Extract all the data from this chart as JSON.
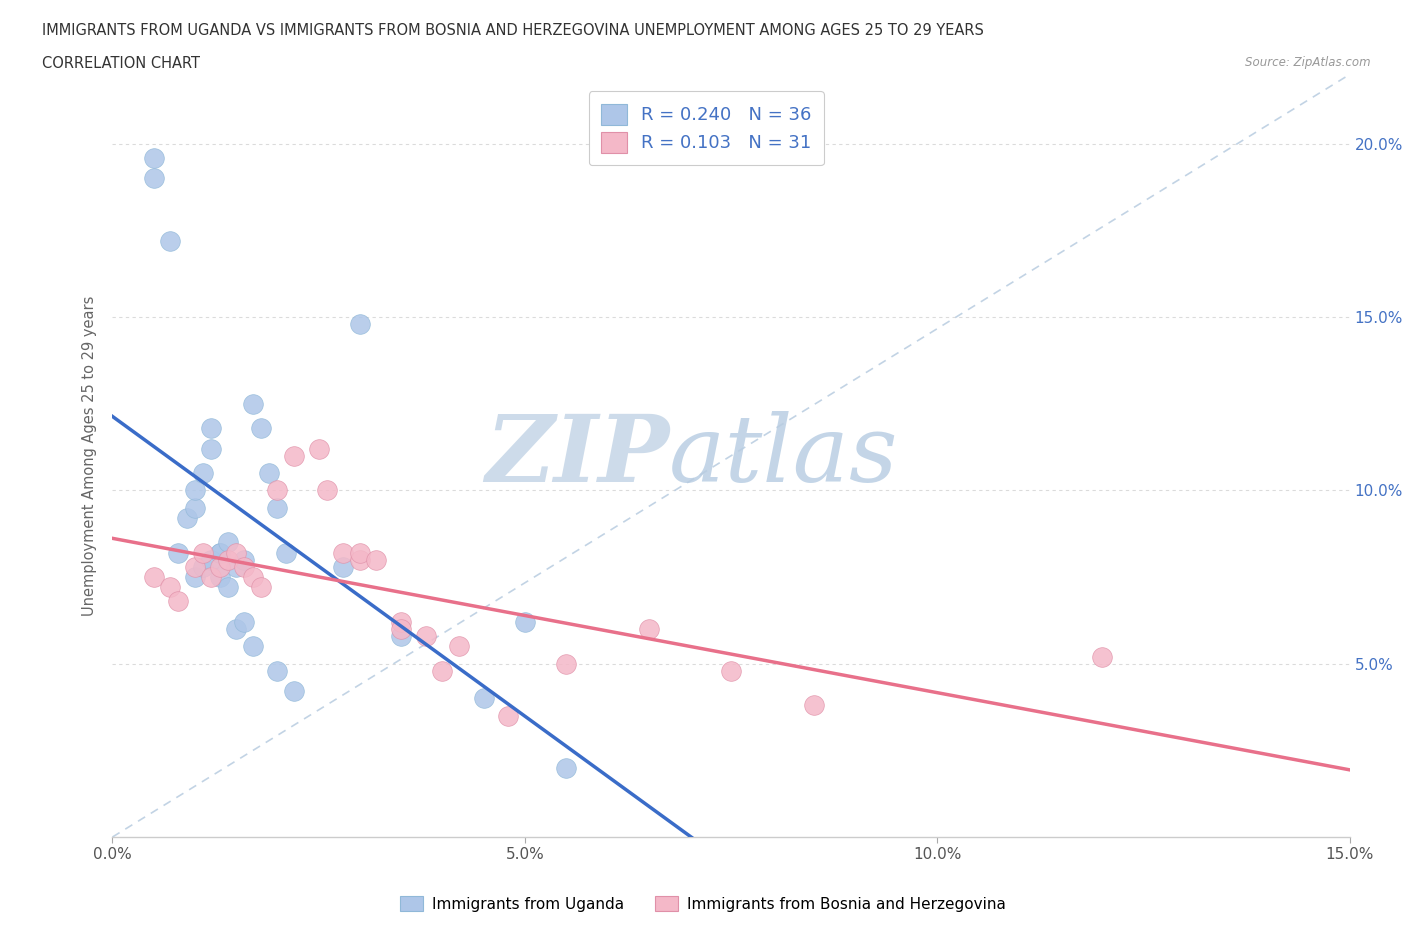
{
  "title_line1": "IMMIGRANTS FROM UGANDA VS IMMIGRANTS FROM BOSNIA AND HERZEGOVINA UNEMPLOYMENT AMONG AGES 25 TO 29 YEARS",
  "title_line2": "CORRELATION CHART",
  "source": "Source: ZipAtlas.com",
  "ylabel": "Unemployment Among Ages 25 to 29 years",
  "legend_label1": "Immigrants from Uganda",
  "legend_label2": "Immigrants from Bosnia and Herzegovina",
  "R1": 0.24,
  "N1": 36,
  "R2": 0.103,
  "N2": 31,
  "color_uganda": "#aec6e8",
  "color_bosnia": "#f4b8c8",
  "color_uganda_line": "#3a6cc8",
  "color_bosnia_line": "#e8708a",
  "color_diag": "#b8cce0",
  "xlim": [
    0,
    0.15
  ],
  "ylim": [
    0,
    0.22
  ],
  "xticks": [
    0.0,
    0.05,
    0.1,
    0.15
  ],
  "yticks": [
    0.05,
    0.1,
    0.15,
    0.2
  ],
  "uganda_x": [
    0.005,
    0.005,
    0.007,
    0.008,
    0.009,
    0.01,
    0.01,
    0.011,
    0.012,
    0.012,
    0.013,
    0.013,
    0.014,
    0.01,
    0.011,
    0.012,
    0.013,
    0.014,
    0.015,
    0.016,
    0.017,
    0.018,
    0.019,
    0.02,
    0.021,
    0.015,
    0.016,
    0.017,
    0.02,
    0.022,
    0.028,
    0.03,
    0.035,
    0.045,
    0.05,
    0.055
  ],
  "uganda_y": [
    0.19,
    0.196,
    0.172,
    0.082,
    0.092,
    0.095,
    0.1,
    0.105,
    0.112,
    0.118,
    0.082,
    0.075,
    0.072,
    0.075,
    0.078,
    0.08,
    0.082,
    0.085,
    0.078,
    0.08,
    0.125,
    0.118,
    0.105,
    0.095,
    0.082,
    0.06,
    0.062,
    0.055,
    0.048,
    0.042,
    0.078,
    0.148,
    0.058,
    0.04,
    0.062,
    0.02
  ],
  "bosnia_x": [
    0.005,
    0.007,
    0.008,
    0.01,
    0.011,
    0.012,
    0.013,
    0.014,
    0.015,
    0.016,
    0.017,
    0.018,
    0.02,
    0.022,
    0.025,
    0.026,
    0.028,
    0.03,
    0.03,
    0.032,
    0.035,
    0.035,
    0.038,
    0.04,
    0.042,
    0.048,
    0.055,
    0.065,
    0.075,
    0.085,
    0.12
  ],
  "bosnia_y": [
    0.075,
    0.072,
    0.068,
    0.078,
    0.082,
    0.075,
    0.078,
    0.08,
    0.082,
    0.078,
    0.075,
    0.072,
    0.1,
    0.11,
    0.112,
    0.1,
    0.082,
    0.08,
    0.082,
    0.08,
    0.062,
    0.06,
    0.058,
    0.048,
    0.055,
    0.035,
    0.05,
    0.06,
    0.048,
    0.038,
    0.052
  ],
  "watermark_zip": "ZIP",
  "watermark_atlas": "atlas",
  "watermark_color": "#ccd8e8"
}
